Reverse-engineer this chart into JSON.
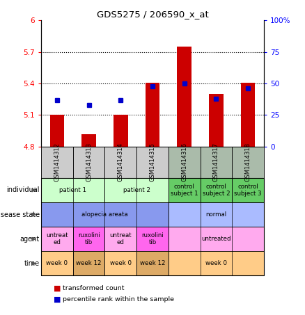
{
  "title": "GDS5275 / 206590_x_at",
  "samples": [
    "GSM1414312",
    "GSM1414313",
    "GSM1414314",
    "GSM1414315",
    "GSM1414316",
    "GSM1414317",
    "GSM1414318"
  ],
  "transformed_count": [
    5.1,
    4.92,
    5.1,
    5.41,
    5.75,
    5.3,
    5.41
  ],
  "percentile_rank": [
    37,
    33,
    37,
    48,
    50,
    38,
    46
  ],
  "baseline": 4.8,
  "ylim_left": [
    4.8,
    6.0
  ],
  "yticks_left": [
    4.8,
    5.1,
    5.4,
    5.7,
    6.0
  ],
  "ytick_labels_left": [
    "4.8",
    "5.1",
    "5.4",
    "5.7",
    "6"
  ],
  "ytick_labels_right": [
    "0",
    "25",
    "50",
    "75",
    "100%"
  ],
  "bar_color": "#cc0000",
  "dot_color": "#0000cc",
  "individual_groups": [
    {
      "cols": [
        0,
        1
      ],
      "label": "patient 1",
      "color": "#ccffcc"
    },
    {
      "cols": [
        2,
        3
      ],
      "label": "patient 2",
      "color": "#ccffcc"
    },
    {
      "cols": [
        4
      ],
      "label": "control\nsubject 1",
      "color": "#66cc66"
    },
    {
      "cols": [
        5
      ],
      "label": "control\nsubject 2",
      "color": "#66cc66"
    },
    {
      "cols": [
        6
      ],
      "label": "control\nsubject 3",
      "color": "#66cc66"
    }
  ],
  "disease_groups": [
    {
      "cols": [
        0,
        1,
        2,
        3
      ],
      "label": "alopecia areata",
      "color": "#8899ee"
    },
    {
      "cols": [
        4,
        5,
        6
      ],
      "label": "normal",
      "color": "#aabbff"
    }
  ],
  "agent_groups": [
    {
      "cols": [
        0
      ],
      "label": "untreat\ned",
      "color": "#ffaaee"
    },
    {
      "cols": [
        1
      ],
      "label": "ruxolini\ntib",
      "color": "#ff66ee"
    },
    {
      "cols": [
        2
      ],
      "label": "untreat\ned",
      "color": "#ffaaee"
    },
    {
      "cols": [
        3
      ],
      "label": "ruxolini\ntib",
      "color": "#ff66ee"
    },
    {
      "cols": [
        4,
        5,
        6
      ],
      "label": "untreated",
      "color": "#ffaaee"
    }
  ],
  "time_groups": [
    {
      "cols": [
        0
      ],
      "label": "week 0",
      "color": "#ffcc88"
    },
    {
      "cols": [
        1
      ],
      "label": "week 12",
      "color": "#ddaa66"
    },
    {
      "cols": [
        2
      ],
      "label": "week 0",
      "color": "#ffcc88"
    },
    {
      "cols": [
        3
      ],
      "label": "week 12",
      "color": "#ddaa66"
    },
    {
      "cols": [
        4,
        5,
        6
      ],
      "label": "week 0",
      "color": "#ffcc88"
    }
  ],
  "row_labels": [
    "individual",
    "disease state",
    "agent",
    "time"
  ],
  "sample_bg": "#cccccc",
  "sample_bg_control": "#aabbaa"
}
